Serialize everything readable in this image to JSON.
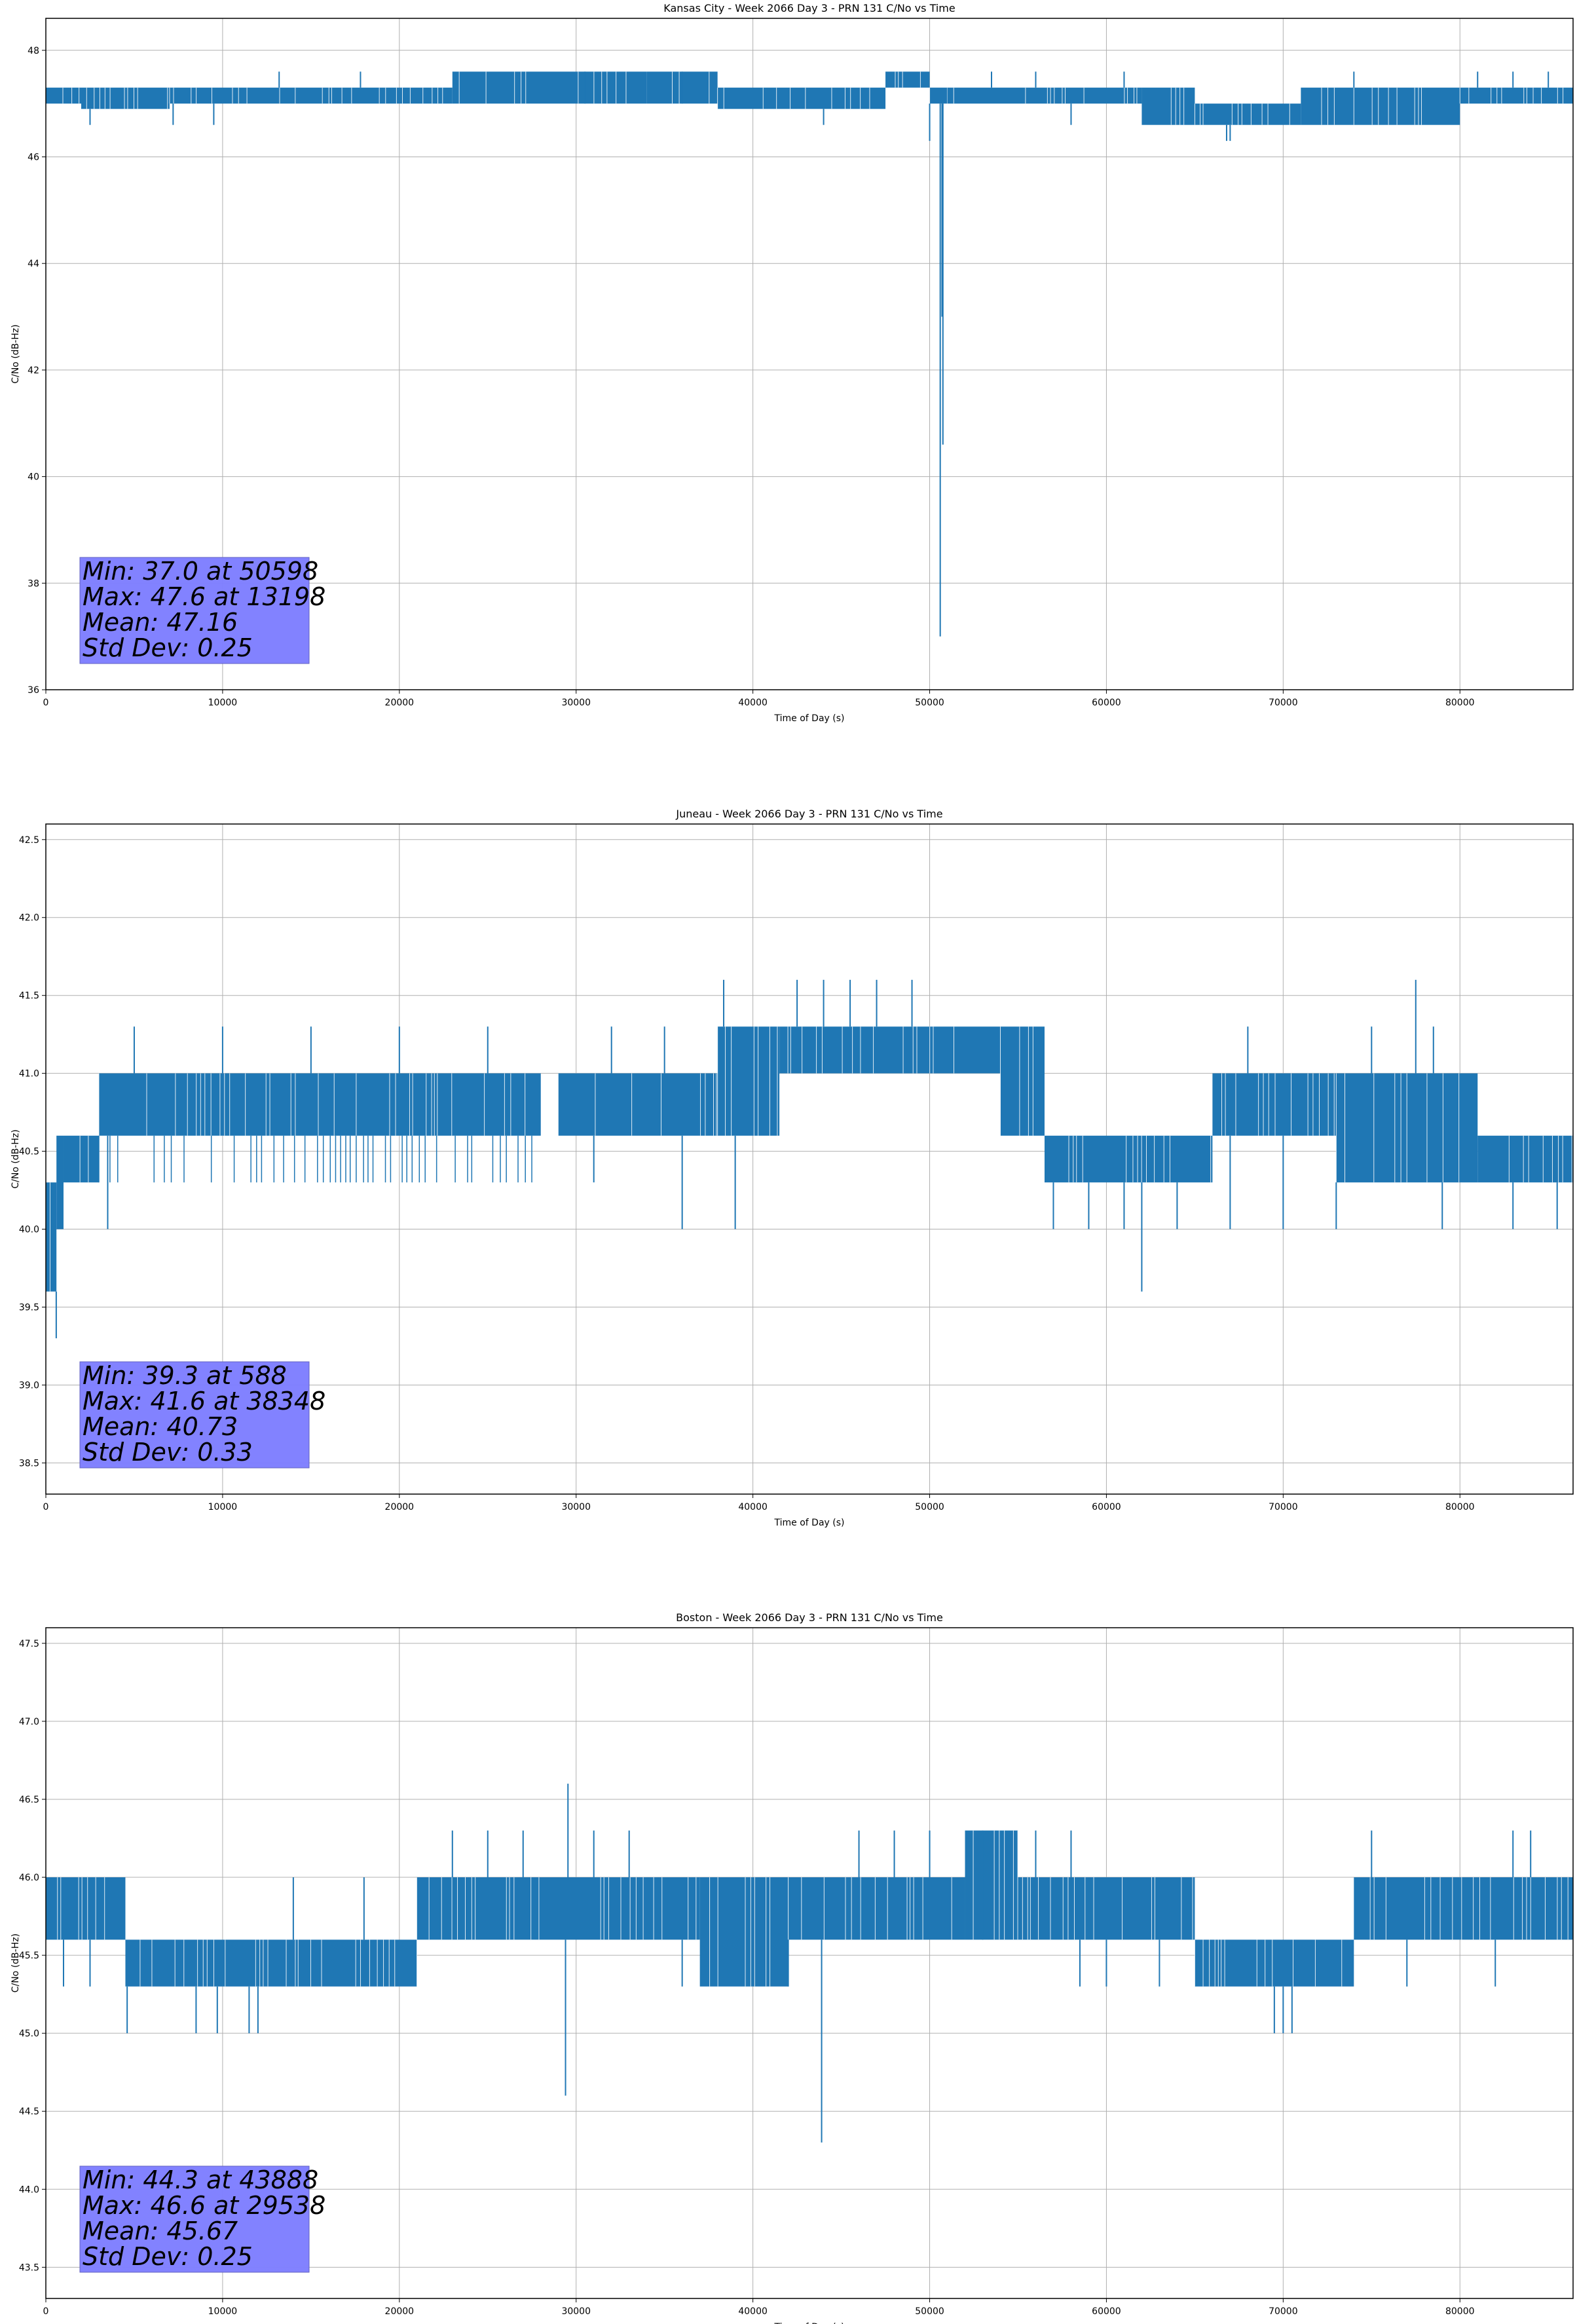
{
  "chart_data": [
    {
      "type": "line",
      "title": "Kansas City - Week 2066 Day 3 - PRN 131 C/No vs Time",
      "xlabel": "Time of Day (s)",
      "ylabel": "C/No (dB-Hz)",
      "xlim": [
        0,
        86400
      ],
      "ylim": [
        36,
        48.6
      ],
      "xticks": [
        0,
        10000,
        20000,
        30000,
        40000,
        50000,
        60000,
        70000,
        80000
      ],
      "yticks": [
        36,
        38,
        40,
        42,
        44,
        46,
        48
      ],
      "ytick_labels": [
        "36",
        "38",
        "40",
        "42",
        "44",
        "46",
        "48"
      ],
      "grid": true,
      "series_color": "#1f77b4",
      "segments": [
        {
          "x": [
            0,
            2000
          ],
          "lo": 47.0,
          "hi": 47.3
        },
        {
          "x": [
            2000,
            7000
          ],
          "lo": 46.9,
          "hi": 47.3
        },
        {
          "x": [
            7000,
            23000
          ],
          "lo": 47.0,
          "hi": 47.3
        },
        {
          "x": [
            23000,
            34000
          ],
          "lo": 47.0,
          "hi": 47.6
        },
        {
          "x": [
            34000,
            38000
          ],
          "lo": 47.0,
          "hi": 47.6
        },
        {
          "x": [
            38000,
            47500
          ],
          "lo": 46.9,
          "hi": 47.3
        },
        {
          "x": [
            47500,
            50000
          ],
          "lo": 47.3,
          "hi": 47.6
        },
        {
          "x": [
            50000,
            51000
          ],
          "lo": 47.0,
          "hi": 47.3
        },
        {
          "x": [
            51000,
            62000
          ],
          "lo": 47.0,
          "hi": 47.3
        },
        {
          "x": [
            62000,
            65000
          ],
          "lo": 46.6,
          "hi": 47.3
        },
        {
          "x": [
            65000,
            71000
          ],
          "lo": 46.6,
          "hi": 47.0
        },
        {
          "x": [
            71000,
            80000
          ],
          "lo": 46.6,
          "hi": 47.3
        },
        {
          "x": [
            80000,
            86400
          ],
          "lo": 47.0,
          "hi": 47.3
        }
      ],
      "spikes": [
        [
          13198,
          47.6
        ],
        [
          17800,
          47.6
        ],
        [
          2500,
          46.6
        ],
        [
          7200,
          46.6
        ],
        [
          9500,
          46.6
        ],
        [
          44000,
          46.6
        ],
        [
          50000,
          46.3
        ],
        [
          50598,
          37.0
        ],
        [
          50700,
          43.0
        ],
        [
          50750,
          40.6
        ],
        [
          58000,
          46.6
        ],
        [
          66800,
          46.3
        ],
        [
          67000,
          46.3
        ],
        [
          78000,
          46.6
        ],
        [
          81000,
          47.6
        ],
        [
          83000,
          47.6
        ],
        [
          85000,
          47.6
        ],
        [
          30500,
          47.6
        ],
        [
          36000,
          47.6
        ],
        [
          53500,
          47.6
        ],
        [
          56000,
          47.6
        ],
        [
          61000,
          47.6
        ],
        [
          74000,
          47.6
        ]
      ],
      "stats": [
        "Min: 37.0 at 50598",
        "Max: 47.6 at 13198",
        "Mean: 47.16",
        "Std Dev: 0.25"
      ],
      "stats_box_color": "#8080ff"
    },
    {
      "type": "line",
      "title": "Juneau - Week 2066 Day 3 - PRN 131 C/No vs Time",
      "xlabel": "Time of Day (s)",
      "ylabel": "C/No (dB-Hz)",
      "xlim": [
        0,
        86400
      ],
      "ylim": [
        38.3,
        42.6
      ],
      "xticks": [
        0,
        10000,
        20000,
        30000,
        40000,
        50000,
        60000,
        70000,
        80000
      ],
      "yticks": [
        38.5,
        39.0,
        39.5,
        40.0,
        40.5,
        41.0,
        41.5,
        42.0,
        42.5
      ],
      "ytick_labels": [
        "38.5",
        "39.0",
        "39.5",
        "40.0",
        "40.5",
        "41.0",
        "41.5",
        "42.0",
        "42.5"
      ],
      "grid": true,
      "series_color": "#1f77b4",
      "segments": [
        {
          "x": [
            0,
            600
          ],
          "lo": 39.6,
          "hi": 40.3
        },
        {
          "x": [
            600,
            1000
          ],
          "lo": 40.0,
          "hi": 40.6
        },
        {
          "x": [
            1000,
            3000
          ],
          "lo": 40.3,
          "hi": 40.6
        },
        {
          "x": [
            3000,
            28000
          ],
          "lo": 40.6,
          "hi": 41.0
        },
        {
          "x": [
            3000,
            28000
          ],
          "lo": 40.3,
          "hi": 40.6,
          "thin": true
        },
        {
          "x": [
            29000,
            38000
          ],
          "lo": 40.6,
          "hi": 41.0
        },
        {
          "x": [
            38000,
            41500
          ],
          "lo": 40.6,
          "hi": 41.3
        },
        {
          "x": [
            41500,
            54000
          ],
          "lo": 41.0,
          "hi": 41.3
        },
        {
          "x": [
            54000,
            56500
          ],
          "lo": 40.6,
          "hi": 41.3
        },
        {
          "x": [
            56500,
            66000
          ],
          "lo": 40.3,
          "hi": 40.6
        },
        {
          "x": [
            66000,
            73000
          ],
          "lo": 40.6,
          "hi": 41.0
        },
        {
          "x": [
            73000,
            81000
          ],
          "lo": 40.3,
          "hi": 41.0
        },
        {
          "x": [
            81000,
            86400
          ],
          "lo": 40.3,
          "hi": 40.6
        }
      ],
      "spikes": [
        [
          588,
          39.3
        ],
        [
          300,
          39.6
        ],
        [
          38348,
          41.6
        ],
        [
          42500,
          41.6
        ],
        [
          44000,
          41.6
        ],
        [
          45500,
          41.6
        ],
        [
          47000,
          41.6
        ],
        [
          49000,
          41.6
        ],
        [
          62000,
          39.6
        ],
        [
          77500,
          41.6
        ],
        [
          5000,
          41.3
        ],
        [
          10000,
          41.3
        ],
        [
          15000,
          41.3
        ],
        [
          20000,
          41.3
        ],
        [
          25000,
          41.3
        ],
        [
          32000,
          41.3
        ],
        [
          35000,
          41.3
        ],
        [
          68000,
          41.3
        ],
        [
          75000,
          41.3
        ],
        [
          78500,
          41.3
        ],
        [
          3500,
          40.0
        ],
        [
          31000,
          40.3
        ],
        [
          36000,
          40.0
        ],
        [
          39000,
          40.0
        ],
        [
          57000,
          40.0
        ],
        [
          59000,
          40.0
        ],
        [
          61000,
          40.0
        ],
        [
          64000,
          40.0
        ],
        [
          67000,
          40.0
        ],
        [
          70000,
          40.0
        ],
        [
          73000,
          40.0
        ],
        [
          79000,
          40.0
        ],
        [
          83000,
          40.0
        ],
        [
          85500,
          40.0
        ]
      ],
      "stats": [
        "Min: 39.3 at 588",
        "Max: 41.6 at 38348",
        "Mean: 40.73",
        "Std Dev: 0.33"
      ],
      "stats_box_color": "#8080ff"
    },
    {
      "type": "line",
      "title": "Boston - Week 2066 Day 3 - PRN 131 C/No vs Time",
      "xlabel": "Time of Day (s)",
      "ylabel": "C/No (dB-Hz)",
      "xlim": [
        0,
        86400
      ],
      "ylim": [
        43.3,
        47.6
      ],
      "xticks": [
        0,
        10000,
        20000,
        30000,
        40000,
        50000,
        60000,
        70000,
        80000
      ],
      "yticks": [
        43.5,
        44.0,
        44.5,
        45.0,
        45.5,
        46.0,
        46.5,
        47.0,
        47.5
      ],
      "ytick_labels": [
        "43.5",
        "44.0",
        "44.5",
        "45.0",
        "45.5",
        "46.0",
        "46.5",
        "47.0",
        "47.5"
      ],
      "grid": true,
      "series_color": "#1f77b4",
      "segments": [
        {
          "x": [
            0,
            4500
          ],
          "lo": 45.6,
          "hi": 46.0
        },
        {
          "x": [
            4500,
            6000
          ],
          "lo": 45.3,
          "hi": 45.6
        },
        {
          "x": [
            6000,
            21000
          ],
          "lo": 45.3,
          "hi": 45.6
        },
        {
          "x": [
            21000,
            37000
          ],
          "lo": 45.6,
          "hi": 46.0
        },
        {
          "x": [
            37000,
            42000
          ],
          "lo": 45.3,
          "hi": 46.0
        },
        {
          "x": [
            42000,
            52000
          ],
          "lo": 45.6,
          "hi": 46.0
        },
        {
          "x": [
            52000,
            55000
          ],
          "lo": 45.6,
          "hi": 46.3
        },
        {
          "x": [
            55000,
            65000
          ],
          "lo": 45.6,
          "hi": 46.0
        },
        {
          "x": [
            65000,
            74000
          ],
          "lo": 45.3,
          "hi": 45.6
        },
        {
          "x": [
            74000,
            86400
          ],
          "lo": 45.6,
          "hi": 46.0
        }
      ],
      "spikes": [
        [
          29538,
          46.6
        ],
        [
          29400,
          44.6
        ],
        [
          43888,
          44.3
        ],
        [
          4600,
          45.0
        ],
        [
          8500,
          45.0
        ],
        [
          9700,
          45.0
        ],
        [
          11500,
          45.0
        ],
        [
          12000,
          45.0
        ],
        [
          69500,
          45.0
        ],
        [
          70000,
          45.0
        ],
        [
          70500,
          45.0
        ],
        [
          1000,
          45.3
        ],
        [
          2500,
          45.3
        ],
        [
          14000,
          46.0
        ],
        [
          18000,
          46.0
        ],
        [
          23000,
          46.3
        ],
        [
          25000,
          46.3
        ],
        [
          27000,
          46.3
        ],
        [
          31000,
          46.3
        ],
        [
          33000,
          46.3
        ],
        [
          46000,
          46.3
        ],
        [
          48000,
          46.3
        ],
        [
          50000,
          46.3
        ],
        [
          53000,
          46.3
        ],
        [
          56000,
          46.3
        ],
        [
          58000,
          46.3
        ],
        [
          75000,
          46.3
        ],
        [
          83000,
          46.3
        ],
        [
          84000,
          46.3
        ],
        [
          36000,
          45.3
        ],
        [
          38000,
          45.3
        ],
        [
          40000,
          45.3
        ],
        [
          42000,
          45.3
        ],
        [
          58500,
          45.3
        ],
        [
          60000,
          45.3
        ],
        [
          63000,
          45.3
        ],
        [
          66000,
          45.3
        ],
        [
          77000,
          45.3
        ],
        [
          82000,
          45.3
        ]
      ],
      "stats": [
        "Min: 44.3 at 43888",
        "Max: 46.6 at 29538",
        "Mean: 45.67",
        "Std Dev: 0.25"
      ],
      "stats_box_color": "#8080ff"
    }
  ]
}
